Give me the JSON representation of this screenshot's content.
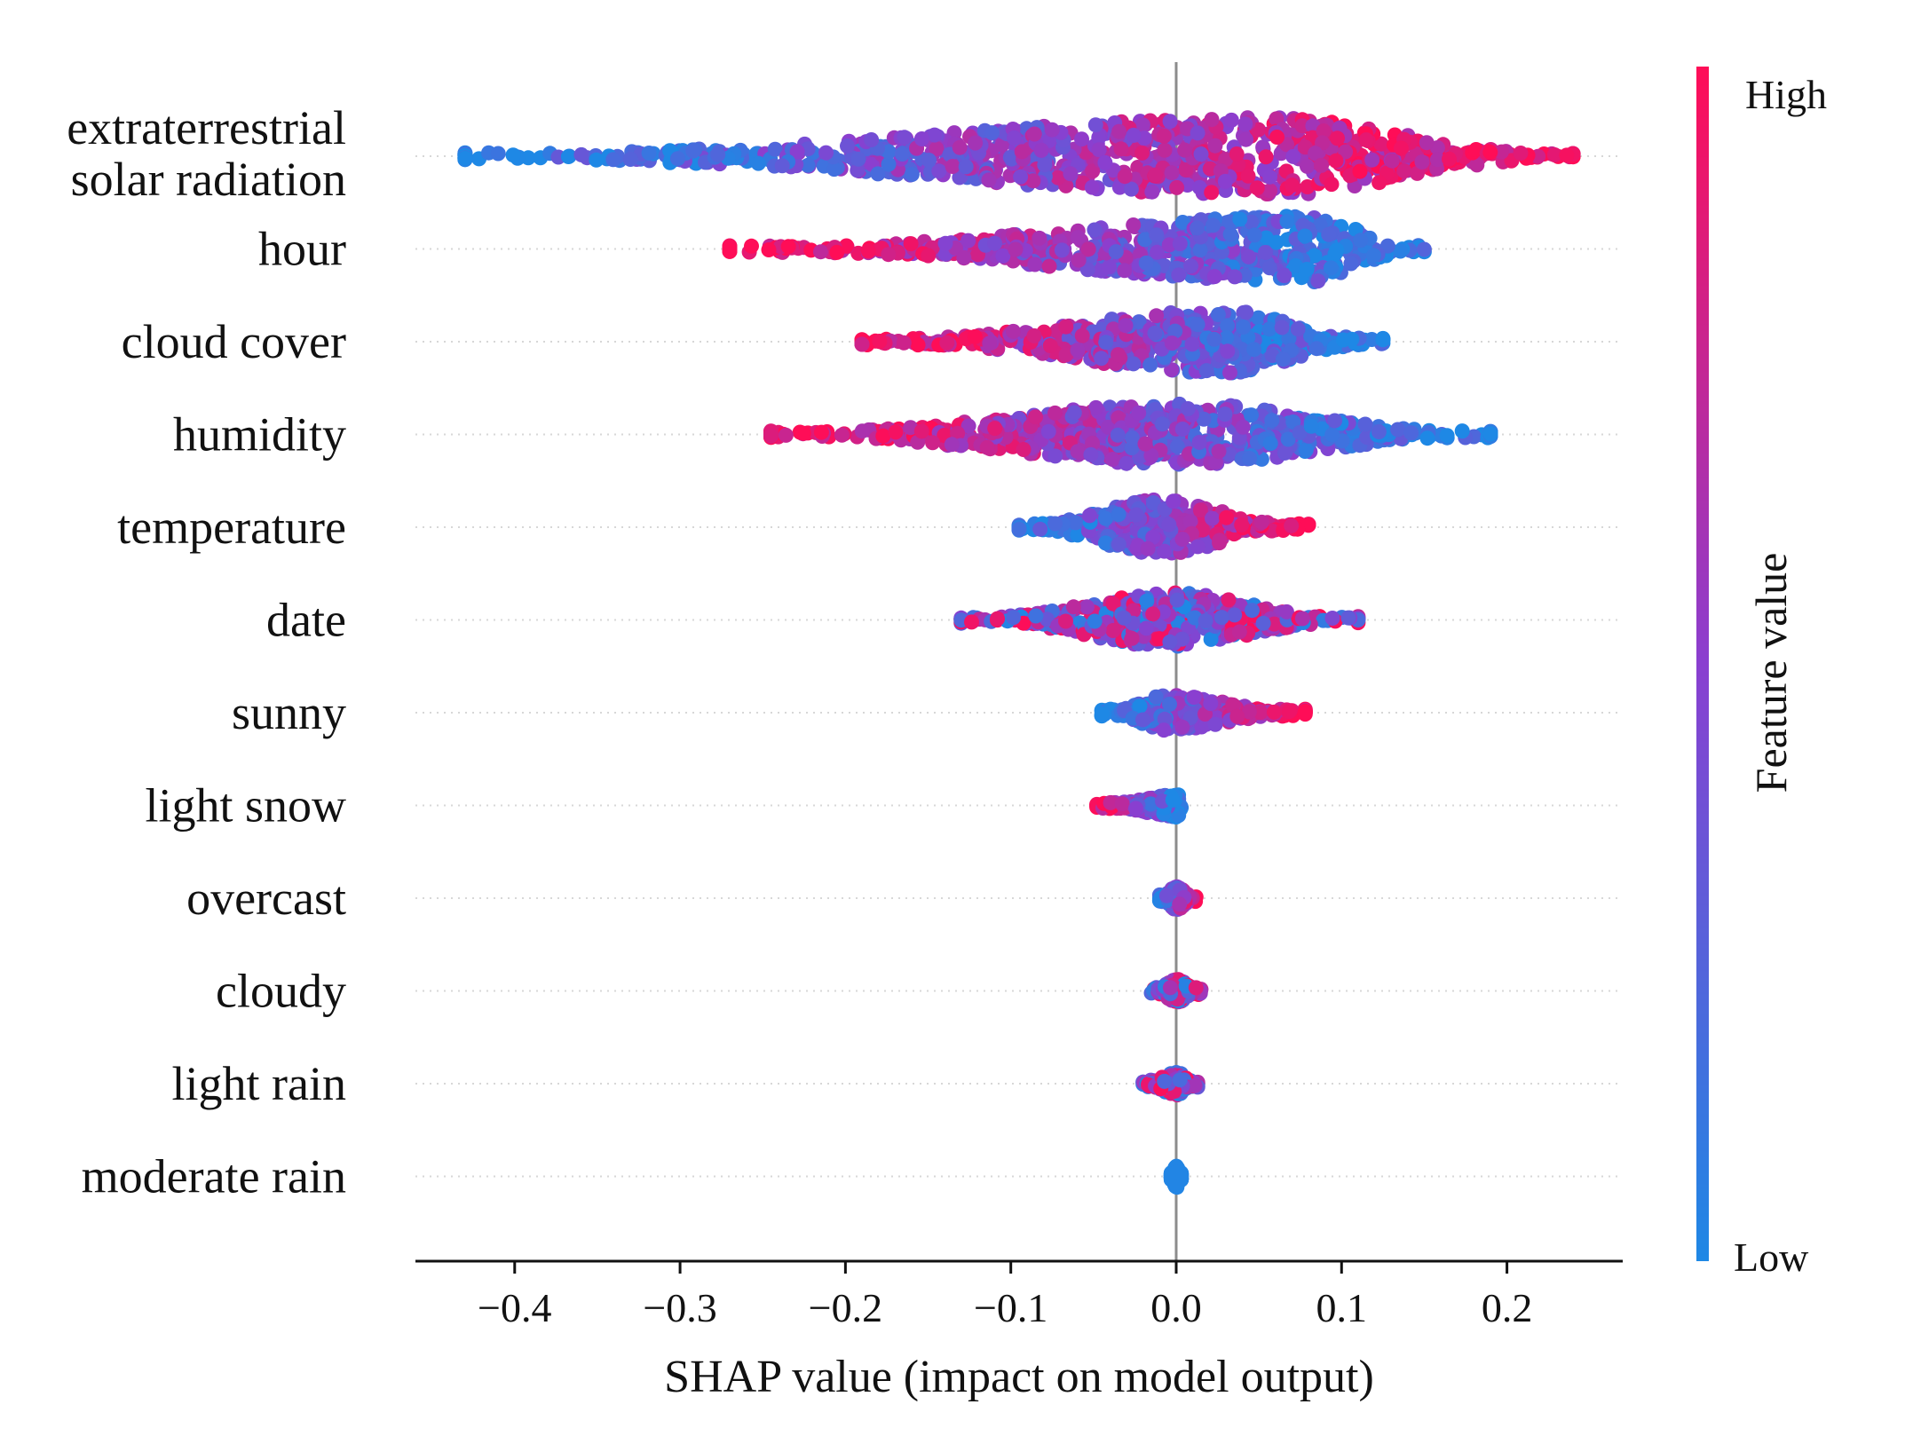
{
  "chart_data": {
    "type": "scatter",
    "subtype": "shap-beeswarm",
    "xlabel": "SHAP value (impact on model output)",
    "xlim": [
      -0.46,
      0.27
    ],
    "xticks": [
      -0.4,
      -0.3,
      -0.2,
      -0.1,
      0.0,
      0.1,
      0.2
    ],
    "xtick_labels": [
      "−0.4",
      "−0.3",
      "−0.2",
      "−0.1",
      "0.0",
      "0.1",
      "0.2"
    ],
    "colorbar": {
      "title": "Feature value",
      "high_label": "High",
      "low_label": "Low",
      "high_color": "#ff0d57",
      "low_color": "#1e88e5"
    },
    "features": [
      {
        "label": "extraterrestrial\nsolar radiation",
        "min": -0.43,
        "max": 0.24,
        "peak": 0.06,
        "spread": 1.0,
        "color_trend": "increasing"
      },
      {
        "label": "hour",
        "min": -0.27,
        "max": 0.15,
        "peak": 0.08,
        "spread": 0.85,
        "color_trend": "decreasing"
      },
      {
        "label": "cloud cover",
        "min": -0.19,
        "max": 0.125,
        "peak": 0.03,
        "spread": 0.8,
        "color_trend": "decreasing"
      },
      {
        "label": "humidity",
        "min": -0.245,
        "max": 0.19,
        "peak": 0.005,
        "spread": 0.8,
        "color_trend": "decreasing"
      },
      {
        "label": "temperature",
        "min": -0.095,
        "max": 0.08,
        "peak": -0.01,
        "spread": 0.7,
        "color_trend": "increasing"
      },
      {
        "label": "date",
        "min": -0.13,
        "max": 0.11,
        "peak": 0.0,
        "spread": 0.7,
        "color_trend": "mixed"
      },
      {
        "label": "sunny",
        "min": -0.045,
        "max": 0.078,
        "peak": -0.005,
        "spread": 0.45,
        "color_trend": "increasing"
      },
      {
        "label": "light snow",
        "min": -0.048,
        "max": 0.003,
        "peak": 0.002,
        "spread": 0.3,
        "color_trend": "decreasing"
      },
      {
        "label": "overcast",
        "min": -0.01,
        "max": 0.012,
        "peak": 0.0,
        "spread": 0.3,
        "color_trend": "increasing"
      },
      {
        "label": "cloudy",
        "min": -0.015,
        "max": 0.015,
        "peak": 0.0,
        "spread": 0.3,
        "color_trend": "mixed"
      },
      {
        "label": "light rain",
        "min": -0.02,
        "max": 0.013,
        "peak": 0.0,
        "spread": 0.3,
        "color_trend": "mixed"
      },
      {
        "label": "moderate rain",
        "min": -0.003,
        "max": 0.003,
        "peak": 0.0,
        "spread": 0.3,
        "color_trend": "low-only"
      }
    ]
  }
}
